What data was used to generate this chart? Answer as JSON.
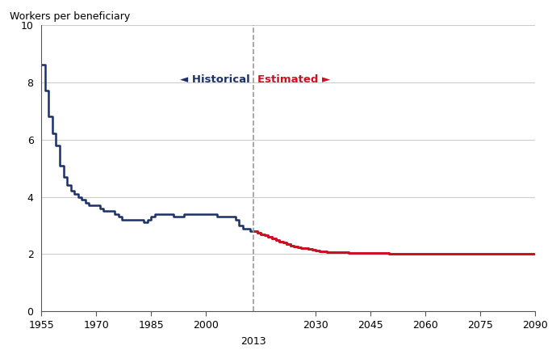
{
  "title": "Workers per beneficiary",
  "xlim": [
    1955,
    2090
  ],
  "ylim": [
    0,
    10
  ],
  "yticks": [
    0,
    2,
    4,
    6,
    8,
    10
  ],
  "divider_year": 2013,
  "historical_color": "#1a3068",
  "estimated_color": "#cc1122",
  "divider_color": "#999999",
  "background_color": "#ffffff",
  "grid_color": "#cccccc",
  "historical_label": "◄ Historical",
  "estimated_label": "Estimated ►",
  "historical_data": {
    "years": [
      1955,
      1956,
      1957,
      1958,
      1959,
      1960,
      1961,
      1962,
      1963,
      1964,
      1965,
      1966,
      1967,
      1968,
      1969,
      1970,
      1971,
      1972,
      1973,
      1974,
      1975,
      1976,
      1977,
      1978,
      1979,
      1980,
      1981,
      1982,
      1983,
      1984,
      1985,
      1986,
      1987,
      1988,
      1989,
      1990,
      1991,
      1992,
      1993,
      1994,
      1995,
      1996,
      1997,
      1998,
      1999,
      2000,
      2001,
      2002,
      2003,
      2004,
      2005,
      2006,
      2007,
      2008,
      2009,
      2010,
      2011,
      2012,
      2013
    ],
    "values": [
      8.6,
      7.7,
      6.8,
      6.2,
      5.8,
      5.1,
      4.7,
      4.4,
      4.2,
      4.1,
      4.0,
      3.9,
      3.8,
      3.7,
      3.7,
      3.7,
      3.6,
      3.5,
      3.5,
      3.5,
      3.4,
      3.3,
      3.2,
      3.2,
      3.2,
      3.2,
      3.2,
      3.2,
      3.1,
      3.2,
      3.3,
      3.4,
      3.4,
      3.4,
      3.4,
      3.4,
      3.3,
      3.3,
      3.3,
      3.4,
      3.4,
      3.4,
      3.4,
      3.4,
      3.4,
      3.4,
      3.4,
      3.4,
      3.3,
      3.3,
      3.3,
      3.3,
      3.3,
      3.2,
      3.0,
      2.9,
      2.9,
      2.8,
      2.8
    ]
  },
  "estimated_data": {
    "years": [
      2013,
      2014,
      2015,
      2016,
      2017,
      2018,
      2019,
      2020,
      2021,
      2022,
      2023,
      2024,
      2025,
      2026,
      2027,
      2028,
      2029,
      2030,
      2031,
      2032,
      2033,
      2034,
      2035,
      2036,
      2037,
      2038,
      2039,
      2040,
      2041,
      2042,
      2043,
      2044,
      2045,
      2050,
      2055,
      2060,
      2061,
      2062,
      2063,
      2064,
      2065,
      2070,
      2075,
      2080,
      2085,
      2090
    ],
    "values": [
      2.8,
      2.75,
      2.7,
      2.65,
      2.6,
      2.55,
      2.5,
      2.45,
      2.4,
      2.35,
      2.3,
      2.28,
      2.25,
      2.22,
      2.2,
      2.18,
      2.15,
      2.12,
      2.1,
      2.1,
      2.08,
      2.08,
      2.07,
      2.07,
      2.06,
      2.06,
      2.05,
      2.05,
      2.04,
      2.04,
      2.03,
      2.03,
      2.03,
      2.02,
      2.02,
      2.01,
      2.01,
      2.01,
      2.01,
      2.01,
      2.01,
      2.01,
      2.01,
      2.01,
      2.01,
      2.01
    ]
  }
}
